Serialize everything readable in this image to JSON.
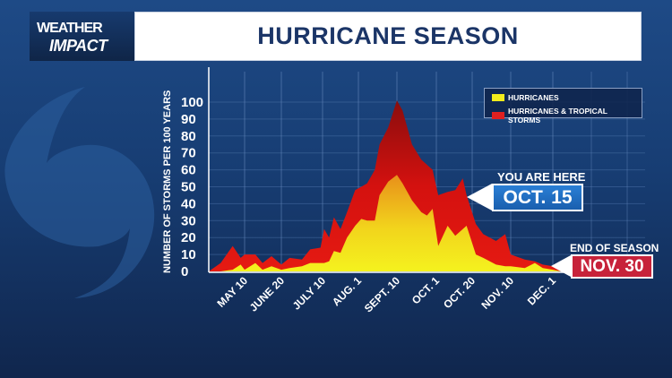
{
  "logo": {
    "line1": "WEATHER",
    "line2": "IMPACT"
  },
  "title": "HURRICANE SEASON",
  "colors": {
    "hurricanes": "#f2ec1c",
    "hurricanes_tropical": "#d4110f",
    "background": "#173d73",
    "callout_current": "#1f6ec4",
    "callout_end": "#c7223a"
  },
  "callouts": {
    "current": {
      "label": "YOU ARE HERE",
      "date": "OCT. 15"
    },
    "end": {
      "label": "END OF SEASON",
      "date": "NOV. 30"
    }
  },
  "chart_data": {
    "type": "area",
    "title": "HURRICANE SEASON",
    "xlabel": "",
    "ylabel": "NUMBER OF STORMS PER 100 YEARS",
    "ylim": [
      0,
      100
    ],
    "yticks": [
      "0",
      "10",
      "20",
      "30",
      "40",
      "50",
      "60",
      "70",
      "80",
      "90",
      "100"
    ],
    "xticks": [
      {
        "date": "May 10",
        "label": "MAY 10"
      },
      {
        "date": "Jun 20",
        "label": "JUNE 20"
      },
      {
        "date": "Jul 10",
        "label": "JULY 10"
      },
      {
        "date": "Aug 1",
        "label": "AUG. 1"
      },
      {
        "date": "Sep 10",
        "label": "SEPT. 10"
      },
      {
        "date": "Oct 1",
        "label": "OCT. 1"
      },
      {
        "date": "Oct 20",
        "label": "OCT. 20"
      },
      {
        "date": "Nov 10",
        "label": "NOV. 10"
      },
      {
        "date": "Dec 1",
        "label": "DEC. 1"
      }
    ],
    "grid": true,
    "legend": "top-right",
    "x": [
      "May 1",
      "May 4",
      "May 7",
      "May 9",
      "May 10",
      "May 22",
      "May 30",
      "Jun 9",
      "Jun 20",
      "Jun 24",
      "Jun 30",
      "Jul 4",
      "Jul 9",
      "Jul 11",
      "Jul 14",
      "Jul 17",
      "Jul 21",
      "Jul 25",
      "Jul 30",
      "Aug 4",
      "Aug 10",
      "Aug 18",
      "Aug 23",
      "Sep 1",
      "Sep 10",
      "Sep 13",
      "Sep 18",
      "Sep 23",
      "Sep 26",
      "Sep 29",
      "Oct 2",
      "Oct 7",
      "Oct 11",
      "Oct 15",
      "Oct 17",
      "Oct 22",
      "Oct 26",
      "Nov 2",
      "Nov 7",
      "Nov 10",
      "Nov 17",
      "Nov 22",
      "Nov 26",
      "Dec 1",
      "Dec 5"
    ],
    "series": [
      {
        "name": "HURRICANES & TROPICAL STORMS",
        "values": [
          0,
          5,
          15,
          8,
          10,
          10,
          5,
          9,
          4,
          8,
          7,
          13,
          14,
          25,
          20,
          32,
          25,
          35,
          48,
          50,
          52,
          60,
          75,
          85,
          101,
          95,
          75,
          66,
          63,
          60,
          45,
          47,
          48,
          55,
          45,
          28,
          22,
          18,
          22,
          10,
          7,
          6,
          4,
          3,
          0
        ]
      },
      {
        "name": "HURRICANES",
        "values": [
          0,
          0,
          1,
          4,
          1,
          5,
          1,
          3,
          1,
          2,
          3,
          5,
          5,
          5,
          6,
          12,
          11,
          20,
          27,
          31,
          30,
          30,
          45,
          53,
          57,
          52,
          42,
          35,
          33,
          37,
          15,
          27,
          21,
          25,
          27,
          10,
          8,
          4,
          3,
          3,
          2,
          5,
          2,
          1,
          0
        ]
      }
    ]
  }
}
